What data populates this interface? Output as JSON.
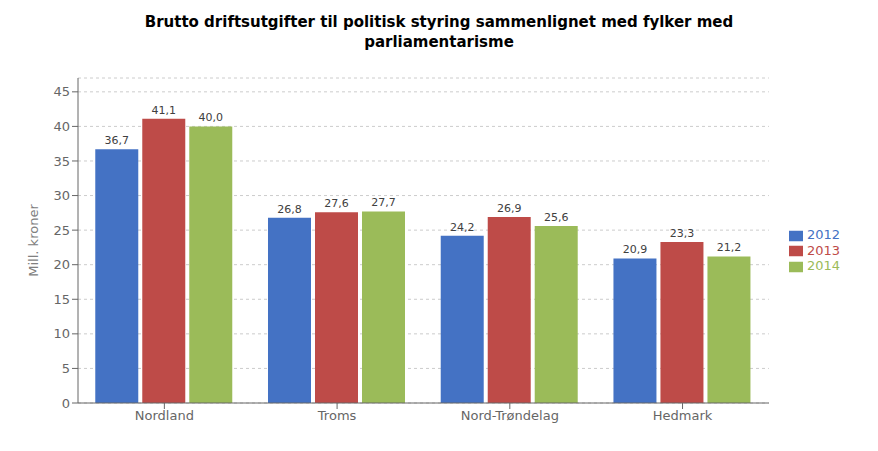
{
  "chart_data": {
    "type": "bar",
    "title": "Brutto driftsutgifter til politisk styring sammenlignet med fylker med\nparliamentarisme",
    "ylabel": "Mill. kroner",
    "categories": [
      "Nordland",
      "Troms",
      "Nord-Trøndelag",
      "Hedmark"
    ],
    "series": [
      {
        "name": "2012",
        "color": "#4472C4",
        "values": [
          36.7,
          26.8,
          24.2,
          20.9
        ],
        "value_labels": [
          "36,7",
          "26,8",
          "24,2",
          "20,9"
        ]
      },
      {
        "name": "2013",
        "color": "#BE4B48",
        "values": [
          41.1,
          27.6,
          26.9,
          23.3
        ],
        "value_labels": [
          "41,1",
          "27,6",
          "26,9",
          "23,3"
        ]
      },
      {
        "name": "2014",
        "color": "#9BBB59",
        "values": [
          40.0,
          27.7,
          25.6,
          21.2
        ],
        "value_labels": [
          "40,0",
          "27,7",
          "25,6",
          "21,2"
        ]
      }
    ],
    "ylim": [
      0,
      47
    ],
    "yticks": [
      0,
      5,
      10,
      15,
      20,
      25,
      30,
      35,
      40,
      45
    ],
    "grid": true,
    "legend": "right",
    "data_labels": true
  }
}
